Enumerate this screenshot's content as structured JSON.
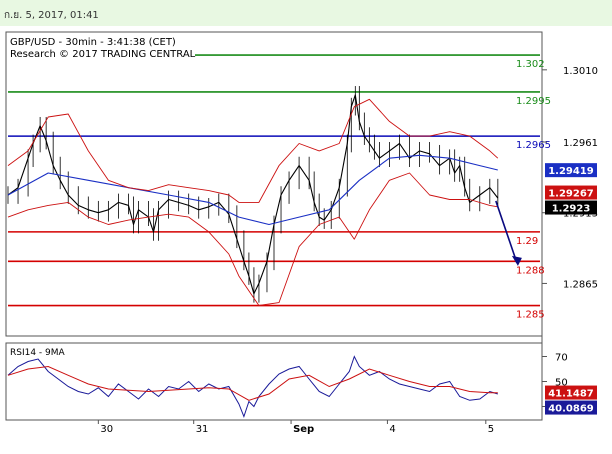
{
  "top_banner": {
    "datetime": "ก.ย. 5, 2017, 01:41"
  },
  "header": {
    "line1": "GBP/USD - 30min - 3:41:38 (CET)",
    "line2": "Research © 2017 TRADING CENTRAL"
  },
  "colors": {
    "banner": "#e8f8e2",
    "price": "#000000",
    "ma": "#1a2fc4",
    "bollinger": "#cc1111",
    "resistance": "#1a8c1a",
    "pivot": "#0a0ab8",
    "support": "#d40000",
    "rsi": "#1a1a99",
    "rsi_ma": "#cc1111"
  },
  "chart_data": [
    {
      "type": "line",
      "title": "GBP/USD - 30min",
      "ylim": [
        1.283,
        1.3035
      ],
      "x_axis": {
        "range": [
          0,
          530
        ],
        "tick_labels": [
          {
            "x": 90,
            "label": "30"
          },
          {
            "x": 185,
            "label": "31"
          },
          {
            "x": 282,
            "label": "Sep"
          },
          {
            "x": 378,
            "label": "4"
          },
          {
            "x": 476,
            "label": "5"
          }
        ]
      },
      "y_ticks": [
        "1.3010",
        "1.2961",
        "1.2913",
        "1.2865"
      ],
      "levels": [
        {
          "value": 1.302,
          "label": "1.302",
          "kind": "resistance"
        },
        {
          "value": 1.2995,
          "label": "1.2995",
          "kind": "resistance"
        },
        {
          "value": 1.2965,
          "label": "1.2965",
          "kind": "pivot"
        },
        {
          "value": 1.29,
          "label": "1.29",
          "kind": "support"
        },
        {
          "value": 1.288,
          "label": "1.288",
          "kind": "support"
        },
        {
          "value": 1.285,
          "label": "1.285",
          "kind": "support"
        }
      ],
      "badges": [
        {
          "value": 1.29419,
          "label": "1.29419",
          "color": "#1a2fc4"
        },
        {
          "value": 1.29267,
          "label": "1.29267",
          "color": "#cc1111"
        },
        {
          "value": 1.2923,
          "label": "1.2923",
          "color": "#000000"
        }
      ],
      "forecast_arrow": {
        "from": [
          486,
          1.2921
        ],
        "to": [
          507,
          1.2879
        ]
      },
      "series": [
        {
          "name": "price",
          "x": [
            0,
            10,
            20,
            25,
            32,
            38,
            45,
            52,
            60,
            70,
            80,
            90,
            100,
            110,
            120,
            125,
            130,
            140,
            145,
            150,
            160,
            170,
            180,
            190,
            200,
            210,
            220,
            228,
            235,
            240,
            245,
            250,
            258,
            265,
            272,
            280,
            290,
            300,
            305,
            310,
            315,
            322,
            330,
            338,
            342,
            346,
            350,
            355,
            360,
            365,
            370,
            380,
            390,
            400,
            410,
            420,
            430,
            440,
            445,
            450,
            455,
            460,
            470,
            480,
            488
          ],
          "values": [
            1.2925,
            1.293,
            1.295,
            1.296,
            1.2972,
            1.2962,
            1.2945,
            1.2935,
            1.2925,
            1.2918,
            1.2915,
            1.2913,
            1.2915,
            1.292,
            1.2918,
            1.2905,
            1.2915,
            1.291,
            1.29,
            1.2915,
            1.2922,
            1.292,
            1.2918,
            1.2915,
            1.2917,
            1.292,
            1.2912,
            1.2895,
            1.288,
            1.287,
            1.2858,
            1.2865,
            1.288,
            1.2905,
            1.2925,
            1.2935,
            1.2945,
            1.2935,
            1.292,
            1.291,
            1.2908,
            1.2915,
            1.293,
            1.296,
            1.2985,
            1.2993,
            1.2975,
            1.2965,
            1.296,
            1.2955,
            1.295,
            1.2955,
            1.296,
            1.295,
            1.2955,
            1.2953,
            1.2945,
            1.295,
            1.294,
            1.2945,
            1.293,
            1.292,
            1.2925,
            1.293,
            1.2923
          ]
        },
        {
          "name": "moving-average",
          "x": [
            0,
            40,
            80,
            120,
            160,
            200,
            230,
            260,
            290,
            320,
            350,
            380,
            410,
            440,
            470,
            488
          ],
          "values": [
            1.2925,
            1.294,
            1.2935,
            1.293,
            1.2925,
            1.292,
            1.291,
            1.2905,
            1.291,
            1.2915,
            1.2935,
            1.295,
            1.2952,
            1.295,
            1.2945,
            1.2942
          ]
        },
        {
          "name": "bollinger-upper",
          "x": [
            0,
            20,
            40,
            60,
            80,
            100,
            120,
            140,
            160,
            180,
            200,
            220,
            230,
            250,
            270,
            290,
            310,
            330,
            345,
            360,
            380,
            400,
            420,
            440,
            460,
            480,
            488
          ],
          "values": [
            1.2945,
            1.2955,
            1.2978,
            1.298,
            1.2955,
            1.2935,
            1.293,
            1.2928,
            1.2932,
            1.293,
            1.2928,
            1.2925,
            1.292,
            1.292,
            1.2945,
            1.296,
            1.2955,
            1.296,
            1.2985,
            1.299,
            1.2975,
            1.2965,
            1.2965,
            1.2968,
            1.2965,
            1.2955,
            1.295
          ]
        },
        {
          "name": "bollinger-lower",
          "x": [
            0,
            20,
            40,
            60,
            80,
            100,
            120,
            140,
            160,
            180,
            200,
            220,
            230,
            250,
            270,
            290,
            310,
            330,
            345,
            360,
            380,
            400,
            420,
            440,
            460,
            480,
            488
          ],
          "values": [
            1.291,
            1.2915,
            1.2918,
            1.292,
            1.291,
            1.2905,
            1.2908,
            1.291,
            1.2912,
            1.291,
            1.29,
            1.2885,
            1.287,
            1.285,
            1.2852,
            1.289,
            1.2905,
            1.291,
            1.2895,
            1.2915,
            1.2935,
            1.294,
            1.2925,
            1.2922,
            1.2922,
            1.2918,
            1.2917
          ]
        }
      ]
    },
    {
      "type": "line",
      "title": "RSI14 - 9MA",
      "ylim": [
        20,
        80
      ],
      "y_ticks": [
        "70",
        "50",
        "30"
      ],
      "badges": [
        {
          "value": 41.1487,
          "label": "41.1487",
          "color": "#cc1111"
        },
        {
          "value": 40.0869,
          "label": "40.0869",
          "color": "#1a1a99"
        }
      ],
      "series": [
        {
          "name": "rsi",
          "x": [
            0,
            10,
            20,
            30,
            40,
            50,
            60,
            70,
            80,
            90,
            100,
            110,
            120,
            130,
            140,
            150,
            160,
            170,
            180,
            190,
            200,
            210,
            220,
            230,
            235,
            240,
            245,
            250,
            260,
            270,
            280,
            290,
            300,
            310,
            320,
            330,
            340,
            345,
            350,
            360,
            370,
            380,
            390,
            400,
            410,
            420,
            430,
            440,
            450,
            460,
            470,
            480,
            488
          ],
          "values": [
            55,
            62,
            66,
            68,
            58,
            52,
            46,
            42,
            40,
            45,
            38,
            48,
            42,
            36,
            44,
            38,
            46,
            44,
            50,
            42,
            48,
            44,
            46,
            32,
            22,
            34,
            30,
            38,
            48,
            56,
            60,
            62,
            52,
            42,
            38,
            48,
            58,
            70,
            62,
            55,
            58,
            52,
            48,
            46,
            44,
            42,
            48,
            50,
            38,
            35,
            36,
            42,
            40
          ]
        },
        {
          "name": "rsi-ma",
          "x": [
            0,
            20,
            40,
            60,
            80,
            100,
            120,
            140,
            160,
            180,
            200,
            220,
            240,
            260,
            280,
            300,
            320,
            340,
            360,
            380,
            400,
            420,
            440,
            460,
            480,
            488
          ],
          "values": [
            55,
            60,
            62,
            55,
            48,
            44,
            43,
            42,
            43,
            44,
            45,
            44,
            35,
            40,
            52,
            55,
            46,
            52,
            60,
            55,
            50,
            46,
            46,
            42,
            41,
            41
          ]
        }
      ]
    }
  ]
}
